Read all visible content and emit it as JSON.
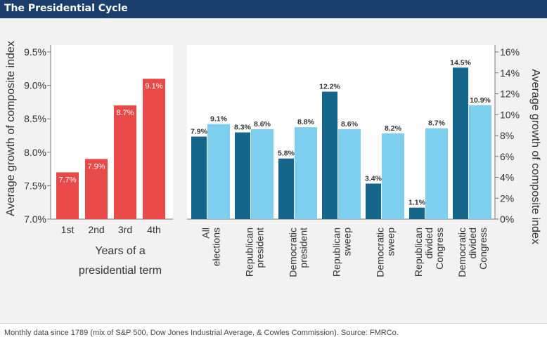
{
  "header": {
    "title": "The Presidential Cycle"
  },
  "footer": {
    "note": "Monthly data since 1789 (mix of S&P 500, Dow Jones Industrial Average, & Cowles Commission). Source: FMRCo."
  },
  "colors": {
    "left_bars": "#e84a4a",
    "dark_bars": "#15668a",
    "light_bars": "#7ecfef",
    "axis": "#777777",
    "text": "#333333"
  },
  "chart_data": [
    {
      "type": "bar",
      "categories": [
        "1st",
        "2nd",
        "3rd",
        "4th"
      ],
      "values": [
        7.7,
        7.9,
        8.7,
        9.1
      ],
      "data_labels": [
        "7.7%",
        "7.9%",
        "8.7%",
        "9.1%"
      ],
      "ylabel": "Average growth of composite index",
      "xlabel_lines": [
        "Years of a",
        "presidential term"
      ],
      "ylim": [
        7.0,
        9.5
      ],
      "yticks": [
        "7.0%",
        "7.5%",
        "8.0%",
        "8.5%",
        "9.0%",
        "9.5%"
      ],
      "ytick_values": [
        7.0,
        7.5,
        8.0,
        8.5,
        9.0,
        9.5
      ]
    },
    {
      "type": "bar",
      "categories": [
        [
          "All",
          "elections"
        ],
        [
          "Republican",
          "president"
        ],
        [
          "Democratic",
          "president"
        ],
        [
          "Republican",
          "sweep"
        ],
        [
          "Democratic",
          "sweep"
        ],
        [
          "Republican",
          "divided",
          "Congress"
        ],
        [
          "Democratic",
          "divided",
          "Congress"
        ]
      ],
      "series": [
        {
          "values": [
            7.9,
            8.3,
            5.8,
            12.2,
            3.4,
            1.1,
            14.5
          ],
          "data_labels": [
            "7.9%",
            "8.3%",
            "5.8%",
            "12.2%",
            "3.4%",
            "1.1%",
            "14.5%"
          ]
        },
        {
          "values": [
            9.1,
            8.6,
            8.8,
            8.6,
            8.2,
            8.7,
            10.9
          ],
          "data_labels": [
            "9.1%",
            "8.6%",
            "8.8%",
            "8.6%",
            "8.2%",
            "8.7%",
            "10.9%"
          ]
        }
      ],
      "ylabel": "Average growth of composite index",
      "ylim": [
        0,
        16
      ],
      "yticks": [
        "0%",
        "2%",
        "4%",
        "6%",
        "8%",
        "10%",
        "12%",
        "14%",
        "16%"
      ],
      "ytick_values": [
        0,
        2,
        4,
        6,
        8,
        10,
        12,
        14,
        16
      ]
    }
  ]
}
